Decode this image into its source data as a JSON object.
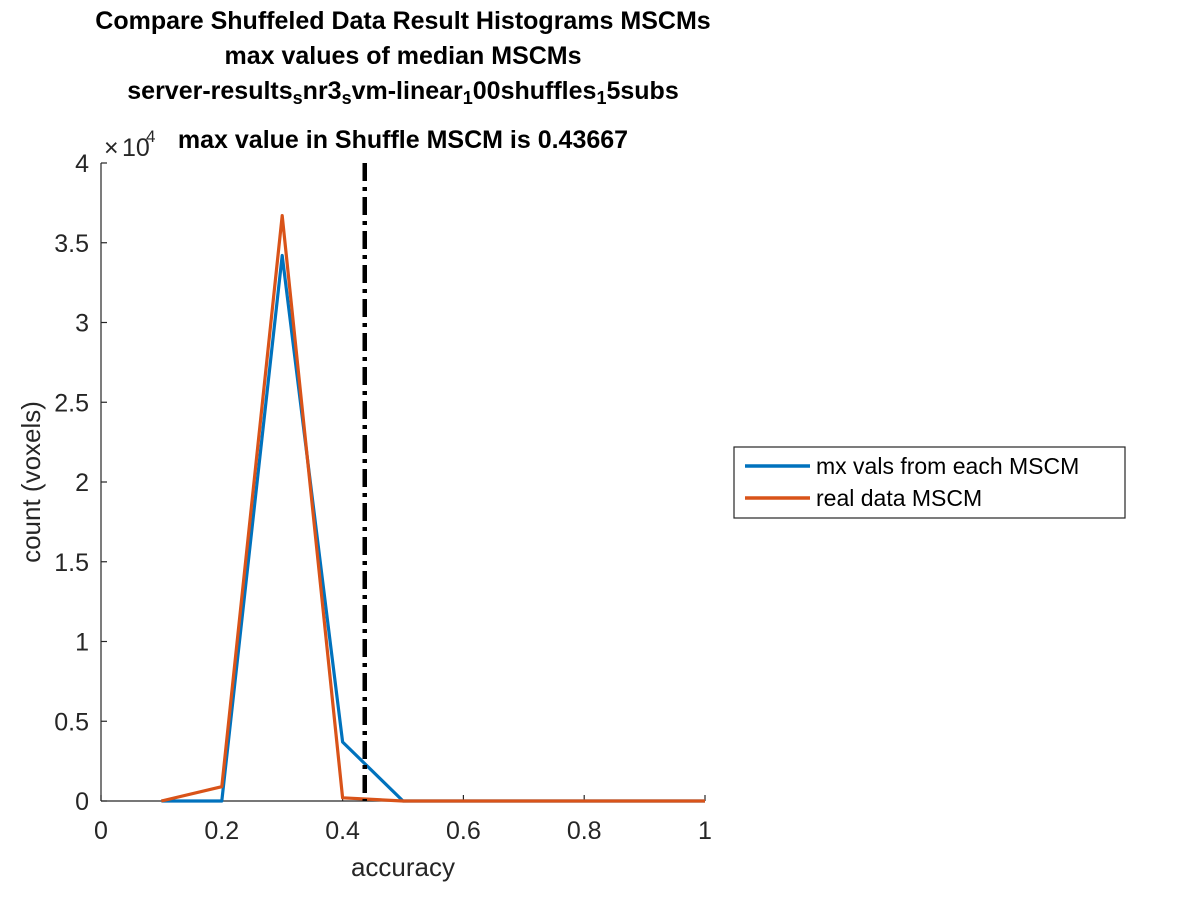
{
  "chart_data": {
    "type": "line",
    "title": {
      "line1": "Compare Shuffeled Data Result Histograms MSCMs",
      "line2": "max values of median MSCMs",
      "line3_parts": [
        {
          "text": "server-results",
          "sub": false
        },
        {
          "text": "s",
          "sub": true
        },
        {
          "text": "nr3",
          "sub": false
        },
        {
          "text": "s",
          "sub": true
        },
        {
          "text": "vm-linear",
          "sub": false
        },
        {
          "text": "1",
          "sub": true
        },
        {
          "text": "00shuffles",
          "sub": false
        },
        {
          "text": "1",
          "sub": true
        },
        {
          "text": "5subs",
          "sub": false
        }
      ],
      "line4": "max value in Shuffle MSCM is 0.43667"
    },
    "xlabel": "accuracy",
    "ylabel": "count (voxels)",
    "y_exponent_base": "10",
    "y_exponent": "4",
    "xlim": [
      0,
      1
    ],
    "ylim": [
      0,
      40000
    ],
    "x_ticks": [
      0,
      0.2,
      0.4,
      0.6,
      0.8,
      1
    ],
    "x_tick_labels": [
      "0",
      "0.2",
      "0.4",
      "0.6",
      "0.8",
      "1"
    ],
    "y_ticks": [
      0,
      5000,
      10000,
      15000,
      20000,
      25000,
      30000,
      35000,
      40000
    ],
    "y_tick_labels": [
      "0",
      "0.5",
      "1",
      "1.5",
      "2",
      "2.5",
      "3",
      "3.5",
      "4"
    ],
    "series": [
      {
        "name": "mx vals from each MSCM",
        "color": "#0072BD",
        "x": [
          0.1,
          0.2,
          0.3,
          0.4,
          0.5,
          0.6,
          0.7,
          0.8,
          0.9,
          1.0
        ],
        "y": [
          0,
          0,
          34200,
          3700,
          0,
          0,
          0,
          0,
          0,
          0
        ]
      },
      {
        "name": "real data MSCM",
        "color": "#D95319",
        "x": [
          0.1,
          0.2,
          0.3,
          0.4,
          0.5,
          0.6,
          0.7,
          0.8,
          0.9,
          1.0
        ],
        "y": [
          0,
          900,
          36700,
          200,
          0,
          0,
          0,
          0,
          0,
          0
        ]
      }
    ],
    "reference_line": {
      "x": 0.43667,
      "color": "#000000",
      "style": "dash-dot"
    },
    "legend_position": "outside-right"
  }
}
